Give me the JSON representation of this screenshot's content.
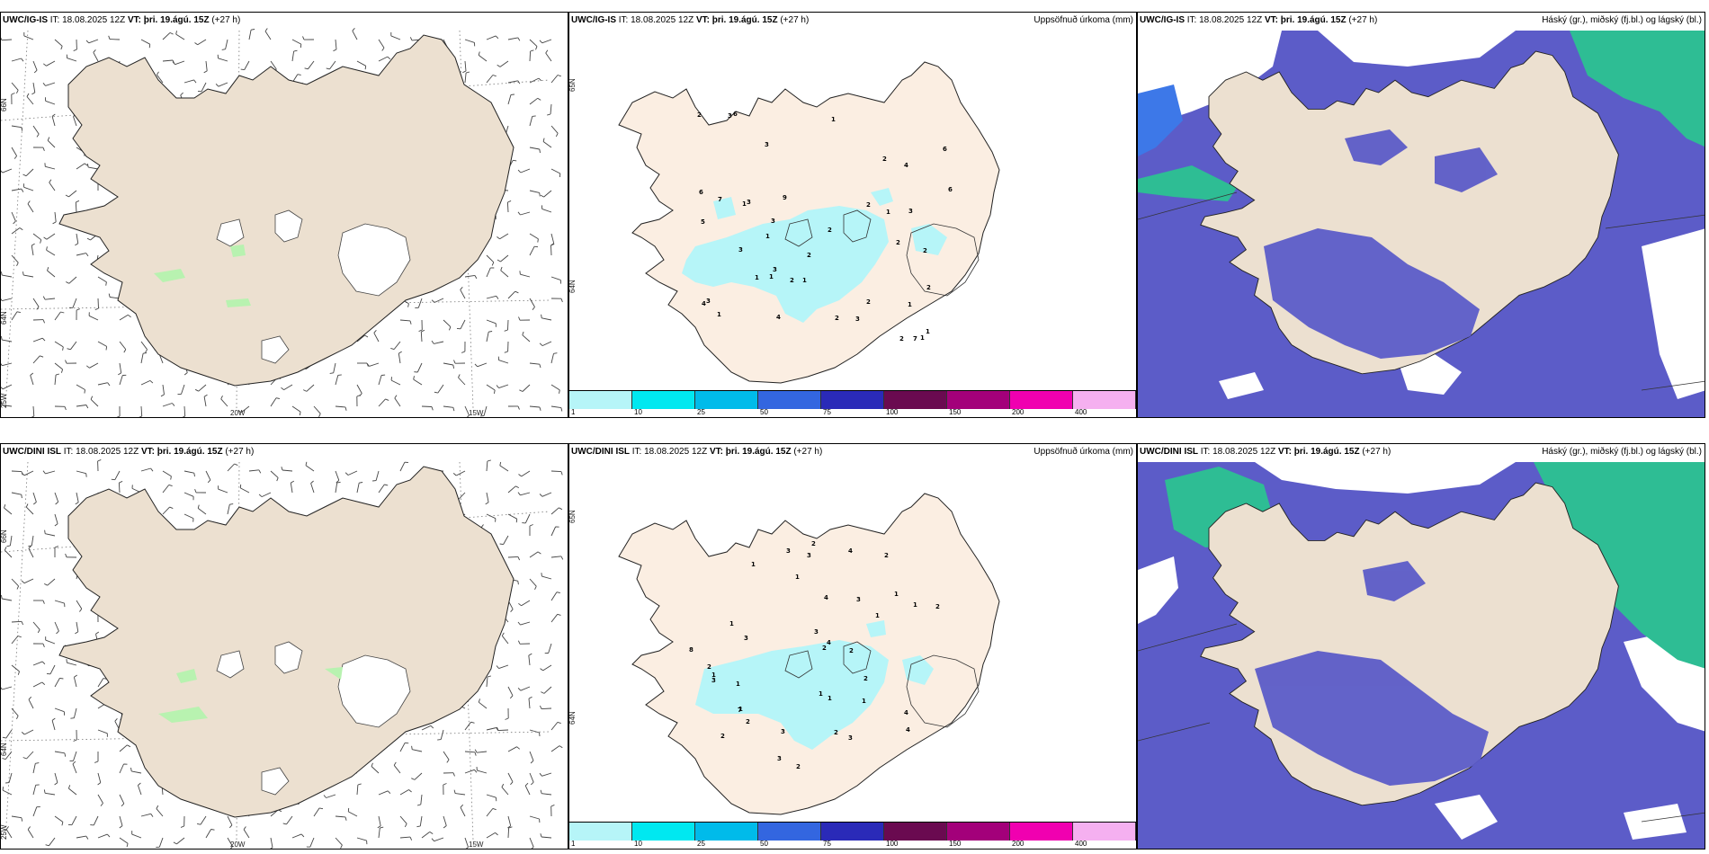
{
  "rows": [
    {
      "model": "UWC/IG-IS",
      "it_label": "IT:",
      "it_value": "18.08.2025 12Z",
      "vt_label": "VT:",
      "vt_value": "þri. 19.ágú. 15Z",
      "lead": "(+27 h)",
      "precip_title": "Uppsöfnuð úrkoma (mm)",
      "cloud_title": "Háský (gr.), miðský (fj.bl.) og lágský (bl.)",
      "precip_values": [
        "2",
        "1",
        "3",
        "2",
        "1",
        "3",
        "1",
        "1",
        "1",
        "1",
        "3",
        "1",
        "2",
        "2",
        "3",
        "2",
        "2",
        "6",
        "6",
        "9",
        "7",
        "3",
        "3",
        "1",
        "1",
        "2",
        "2",
        "3",
        "4",
        "4",
        "3",
        "2",
        "1",
        "2",
        "2",
        "6",
        "7",
        "6",
        "3",
        "4",
        "5",
        "1",
        "2"
      ]
    },
    {
      "model": "UWC/DINI ISL",
      "it_label": "IT:",
      "it_value": "18.08.2025 12Z",
      "vt_label": "VT:",
      "vt_value": "þri. 19.ágú. 15Z",
      "lead": "(+27 h)",
      "precip_title": "Uppsöfnuð úrkoma (mm)",
      "cloud_title": "Háský (gr.), miðský (fj.bl.) og lágský (bl.)",
      "precip_values": [
        "2",
        "2",
        "1",
        "1",
        "1",
        "3",
        "1",
        "1",
        "1",
        "1",
        "2",
        "2",
        "1",
        "2",
        "2",
        "3",
        "4",
        "8",
        "7",
        "3",
        "3",
        "3",
        "1",
        "4",
        "3",
        "3",
        "1",
        "4",
        "4",
        "2",
        "1",
        "2",
        "2",
        "1",
        "4",
        "3",
        "2",
        "2",
        "3"
      ]
    }
  ],
  "axes": {
    "lat_66": "66N",
    "lat_64": "64N",
    "lat_65": "65N",
    "lon_25": "25W",
    "lon_20": "20W",
    "lon_15": "15W"
  },
  "colorbar": {
    "labels": [
      "1",
      "10",
      "25",
      "50",
      "75",
      "100",
      "150",
      "200",
      "400"
    ],
    "colors": [
      "#b6f5f8",
      "#00e8f0",
      "#00bbea",
      "#3366e0",
      "#2a2ab8",
      "#6a0a50",
      "#a3007a",
      "#f000b0",
      "#f5b0f0"
    ]
  },
  "colors": {
    "land": "#ece0d0",
    "land_light": "#fbeee2",
    "ice": "#ffffff",
    "rain": "#b6f5f8",
    "cloud_low": "#5c5cc8",
    "cloud_mid": "#3d78e8",
    "cloud_high": "#2ebd94"
  }
}
